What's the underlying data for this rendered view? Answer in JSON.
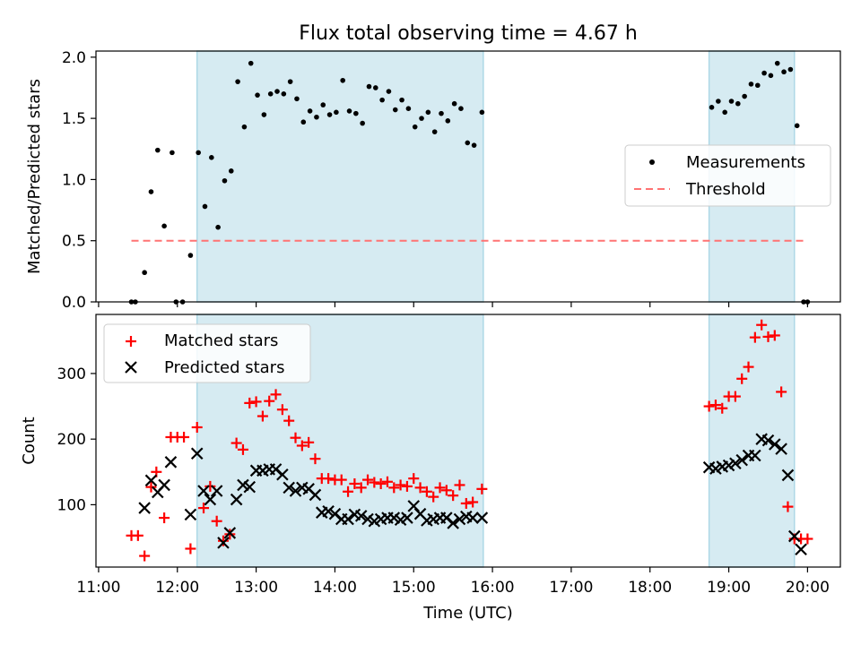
{
  "title": "Flux total observing time = 4.67 h",
  "chart_data": [
    {
      "type": "scatter",
      "ylabel": "Matched/Predicted stars",
      "ylim": [
        0,
        2.05
      ],
      "yticks": [
        "0.0",
        "0.5",
        "1.0",
        "1.5",
        "2.0"
      ],
      "legend": {
        "placement": "center-right",
        "entries": [
          "Measurements",
          "Threshold"
        ]
      },
      "threshold": {
        "value": 0.5,
        "x_start": "11:25",
        "x_end": "19:59",
        "color": "#ff7373"
      },
      "shaded_intervals": [
        [
          "12:15",
          "15:53"
        ],
        [
          "18:45",
          "19:50"
        ]
      ],
      "series": [
        {
          "name": "Measurements",
          "color": "#000000",
          "points": [
            [
              "11:25",
              0.0
            ],
            [
              "11:28",
              0.0
            ],
            [
              "11:35",
              0.24
            ],
            [
              "11:40",
              0.9
            ],
            [
              "11:45",
              1.24
            ],
            [
              "11:50",
              0.62
            ],
            [
              "11:56",
              1.22
            ],
            [
              "11:59",
              0.0
            ],
            [
              "12:04",
              0.0
            ],
            [
              "12:10",
              0.38
            ],
            [
              "12:16",
              1.22
            ],
            [
              "12:21",
              0.78
            ],
            [
              "12:26",
              1.18
            ],
            [
              "12:31",
              0.61
            ],
            [
              "12:36",
              0.99
            ],
            [
              "12:41",
              1.07
            ],
            [
              "12:46",
              1.8
            ],
            [
              "12:51",
              1.43
            ],
            [
              "12:56",
              1.95
            ],
            [
              "13:01",
              1.69
            ],
            [
              "13:06",
              1.53
            ],
            [
              "13:11",
              1.7
            ],
            [
              "13:16",
              1.72
            ],
            [
              "13:21",
              1.7
            ],
            [
              "13:26",
              1.8
            ],
            [
              "13:31",
              1.66
            ],
            [
              "13:36",
              1.47
            ],
            [
              "13:41",
              1.56
            ],
            [
              "13:46",
              1.51
            ],
            [
              "13:51",
              1.61
            ],
            [
              "13:56",
              1.53
            ],
            [
              "14:01",
              1.55
            ],
            [
              "14:06",
              1.81
            ],
            [
              "14:11",
              1.56
            ],
            [
              "14:16",
              1.54
            ],
            [
              "14:21",
              1.46
            ],
            [
              "14:26",
              1.76
            ],
            [
              "14:31",
              1.75
            ],
            [
              "14:36",
              1.65
            ],
            [
              "14:41",
              1.72
            ],
            [
              "14:46",
              1.57
            ],
            [
              "14:51",
              1.65
            ],
            [
              "14:56",
              1.58
            ],
            [
              "15:01",
              1.43
            ],
            [
              "15:06",
              1.5
            ],
            [
              "15:11",
              1.55
            ],
            [
              "15:16",
              1.39
            ],
            [
              "15:21",
              1.54
            ],
            [
              "15:26",
              1.48
            ],
            [
              "15:31",
              1.62
            ],
            [
              "15:36",
              1.58
            ],
            [
              "15:41",
              1.3
            ],
            [
              "15:46",
              1.28
            ],
            [
              "15:52",
              1.55
            ],
            [
              "18:47",
              1.59
            ],
            [
              "18:52",
              1.64
            ],
            [
              "18:57",
              1.55
            ],
            [
              "19:02",
              1.64
            ],
            [
              "19:07",
              1.62
            ],
            [
              "19:12",
              1.68
            ],
            [
              "19:17",
              1.78
            ],
            [
              "19:22",
              1.77
            ],
            [
              "19:27",
              1.87
            ],
            [
              "19:32",
              1.85
            ],
            [
              "19:37",
              1.95
            ],
            [
              "19:42",
              1.88
            ],
            [
              "19:47",
              1.9
            ],
            [
              "19:52",
              1.44
            ],
            [
              "19:57",
              0.0
            ],
            [
              "20:00",
              0.0
            ]
          ]
        }
      ]
    },
    {
      "type": "scatter",
      "xlabel": "Time (UTC)",
      "ylabel": "Count",
      "ylim": [
        5,
        390
      ],
      "yticks": [
        "100",
        "200",
        "300"
      ],
      "xlim": [
        "10:58",
        "20:25"
      ],
      "xticks": [
        "11:00",
        "12:00",
        "13:00",
        "14:00",
        "15:00",
        "16:00",
        "17:00",
        "18:00",
        "19:00",
        "20:00"
      ],
      "legend": {
        "placement": "upper-left",
        "entries": [
          "Matched stars",
          "Predicted stars"
        ]
      },
      "shaded_intervals": [
        [
          "12:15",
          "15:53"
        ],
        [
          "18:45",
          "19:50"
        ]
      ],
      "series": [
        {
          "name": "Matched stars",
          "marker": "+",
          "color": "#ff0000",
          "points": [
            [
              "11:25",
              53
            ],
            [
              "11:30",
              53
            ],
            [
              "11:35",
              22
            ],
            [
              "11:40",
              127
            ],
            [
              "11:44",
              150
            ],
            [
              "11:50",
              80
            ],
            [
              "11:55",
              203
            ],
            [
              "12:00",
              203
            ],
            [
              "12:05",
              203
            ],
            [
              "12:10",
              33
            ],
            [
              "12:15",
              218
            ],
            [
              "12:20",
              95
            ],
            [
              "12:25",
              128
            ],
            [
              "12:30",
              75
            ],
            [
              "12:35",
              45
            ],
            [
              "12:40",
              55
            ],
            [
              "12:45",
              194
            ],
            [
              "12:50",
              184
            ],
            [
              "12:55",
              255
            ],
            [
              "13:00",
              257
            ],
            [
              "13:05",
              235
            ],
            [
              "13:10",
              258
            ],
            [
              "13:15",
              268
            ],
            [
              "13:20",
              245
            ],
            [
              "13:25",
              228
            ],
            [
              "13:30",
              202
            ],
            [
              "13:35",
              190
            ],
            [
              "13:40",
              195
            ],
            [
              "13:45",
              170
            ],
            [
              "13:50",
              140
            ],
            [
              "13:55",
              140
            ],
            [
              "14:00",
              138
            ],
            [
              "14:05",
              138
            ],
            [
              "14:10",
              120
            ],
            [
              "14:15",
              132
            ],
            [
              "14:20",
              126
            ],
            [
              "14:25",
              138
            ],
            [
              "14:30",
              134
            ],
            [
              "14:35",
              132
            ],
            [
              "14:40",
              135
            ],
            [
              "14:45",
              126
            ],
            [
              "14:50",
              130
            ],
            [
              "14:55",
              128
            ],
            [
              "15:00",
              140
            ],
            [
              "15:05",
              126
            ],
            [
              "15:10",
              120
            ],
            [
              "15:15",
              112
            ],
            [
              "15:20",
              126
            ],
            [
              "15:25",
              122
            ],
            [
              "15:30",
              114
            ],
            [
              "15:35",
              130
            ],
            [
              "15:40",
              102
            ],
            [
              "15:45",
              104
            ],
            [
              "15:52",
              124
            ],
            [
              "18:45",
              250
            ],
            [
              "18:50",
              252
            ],
            [
              "18:55",
              247
            ],
            [
              "19:00",
              265
            ],
            [
              "19:05",
              265
            ],
            [
              "19:10",
              292
            ],
            [
              "19:15",
              310
            ],
            [
              "19:20",
              355
            ],
            [
              "19:25",
              374
            ],
            [
              "19:30",
              356
            ],
            [
              "19:35",
              358
            ],
            [
              "19:40",
              272
            ],
            [
              "19:45",
              97
            ],
            [
              "19:50",
              48
            ],
            [
              "19:55",
              48
            ],
            [
              "20:00",
              48
            ]
          ]
        },
        {
          "name": "Predicted stars",
          "marker": "x",
          "color": "#000000",
          "points": [
            [
              "11:35",
              95
            ],
            [
              "11:40",
              137
            ],
            [
              "11:45",
              119
            ],
            [
              "11:50",
              130
            ],
            [
              "11:55",
              165
            ],
            [
              "12:10",
              85
            ],
            [
              "12:15",
              178
            ],
            [
              "12:20",
              121
            ],
            [
              "12:25",
              108
            ],
            [
              "12:30",
              121
            ],
            [
              "12:35",
              42
            ],
            [
              "12:40",
              57
            ],
            [
              "12:45",
              108
            ],
            [
              "12:50",
              130
            ],
            [
              "12:55",
              127
            ],
            [
              "13:00",
              152
            ],
            [
              "13:05",
              152
            ],
            [
              "13:10",
              154
            ],
            [
              "13:15",
              154
            ],
            [
              "13:20",
              146
            ],
            [
              "13:25",
              126
            ],
            [
              "13:30",
              121
            ],
            [
              "13:35",
              126
            ],
            [
              "13:40",
              124
            ],
            [
              "13:45",
              115
            ],
            [
              "13:50",
              88
            ],
            [
              "13:55",
              90
            ],
            [
              "14:00",
              86
            ],
            [
              "14:05",
              78
            ],
            [
              "14:10",
              78
            ],
            [
              "14:15",
              85
            ],
            [
              "14:20",
              83
            ],
            [
              "14:25",
              78
            ],
            [
              "14:30",
              75
            ],
            [
              "14:35",
              78
            ],
            [
              "14:40",
              80
            ],
            [
              "14:45",
              80
            ],
            [
              "14:50",
              77
            ],
            [
              "14:55",
              80
            ],
            [
              "15:00",
              98
            ],
            [
              "15:05",
              86
            ],
            [
              "15:10",
              76
            ],
            [
              "15:15",
              78
            ],
            [
              "15:20",
              80
            ],
            [
              "15:25",
              80
            ],
            [
              "15:30",
              72
            ],
            [
              "15:35",
              78
            ],
            [
              "15:40",
              82
            ],
            [
              "15:45",
              80
            ],
            [
              "15:52",
              80
            ],
            [
              "18:45",
              157
            ],
            [
              "18:50",
              155
            ],
            [
              "18:55",
              158
            ],
            [
              "19:00",
              160
            ],
            [
              "19:05",
              163
            ],
            [
              "19:10",
              168
            ],
            [
              "19:15",
              175
            ],
            [
              "19:20",
              175
            ],
            [
              "19:25",
              200
            ],
            [
              "19:30",
              198
            ],
            [
              "19:35",
              192
            ],
            [
              "19:40",
              185
            ],
            [
              "19:45",
              145
            ],
            [
              "19:50",
              52
            ],
            [
              "19:55",
              32
            ]
          ]
        }
      ]
    }
  ]
}
